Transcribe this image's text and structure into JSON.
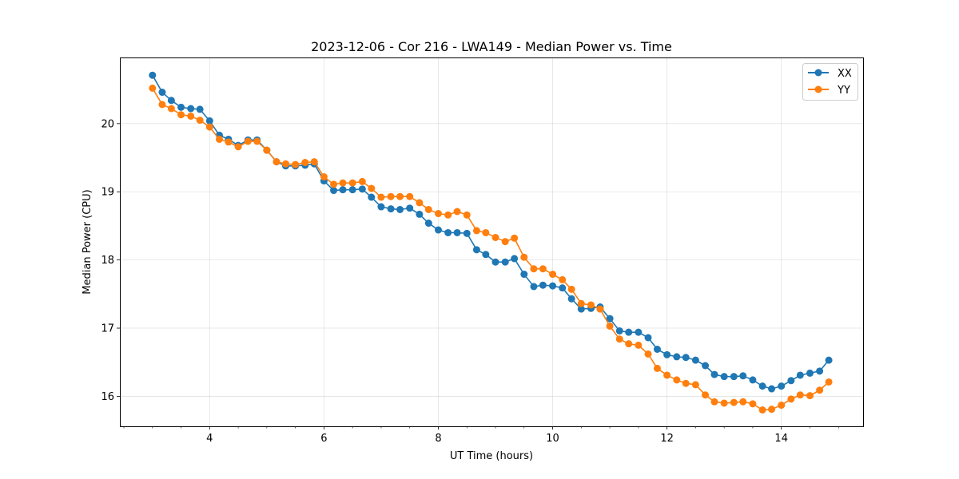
{
  "chart_data": {
    "type": "line",
    "title": "2023-12-06 - Cor 216 - LWA149 - Median Power vs. Time",
    "xlabel": "UT Time (hours)",
    "ylabel": "Median Power (CPU)",
    "xlim": [
      2.43,
      15.43
    ],
    "ylim": [
      15.56,
      20.97
    ],
    "xticks": [
      4,
      6,
      8,
      10,
      12,
      14
    ],
    "yticks": [
      16,
      17,
      18,
      19,
      20
    ],
    "grid": true,
    "legend": "top-right",
    "x": [
      3.0,
      3.17,
      3.33,
      3.5,
      3.67,
      3.83,
      4.0,
      4.17,
      4.33,
      4.5,
      4.67,
      4.83,
      5.0,
      5.17,
      5.33,
      5.5,
      5.67,
      5.83,
      6.0,
      6.17,
      6.33,
      6.5,
      6.67,
      6.83,
      7.0,
      7.17,
      7.33,
      7.5,
      7.67,
      7.83,
      8.0,
      8.17,
      8.33,
      8.5,
      8.67,
      8.83,
      9.0,
      9.17,
      9.33,
      9.5,
      9.67,
      9.83,
      10.0,
      10.17,
      10.33,
      10.5,
      10.67,
      10.83,
      11.0,
      11.17,
      11.33,
      11.5,
      11.67,
      11.83,
      12.0,
      12.17,
      12.33,
      12.5,
      12.67,
      12.83,
      13.0,
      13.17,
      13.33,
      13.5,
      13.67,
      13.83,
      14.0,
      14.17,
      14.33,
      14.5,
      14.67,
      14.83
    ],
    "series": [
      {
        "name": "XX",
        "color": "#1f77b4",
        "values": [
          20.71,
          20.46,
          20.34,
          20.24,
          20.22,
          20.21,
          20.04,
          19.83,
          19.77,
          19.68,
          19.76,
          19.76,
          19.61,
          19.44,
          19.38,
          19.38,
          19.39,
          19.41,
          19.16,
          19.02,
          19.03,
          19.03,
          19.04,
          18.92,
          18.78,
          18.75,
          18.74,
          18.76,
          18.67,
          18.54,
          18.44,
          18.4,
          18.4,
          18.39,
          18.15,
          18.08,
          17.97,
          17.97,
          18.02,
          17.79,
          17.61,
          17.63,
          17.62,
          17.59,
          17.43,
          17.28,
          17.29,
          17.31,
          17.14,
          16.96,
          16.94,
          16.94,
          16.86,
          16.69,
          16.61,
          16.58,
          16.57,
          16.53,
          16.45,
          16.32,
          16.29,
          16.29,
          16.3,
          16.24,
          16.15,
          16.11,
          16.15,
          16.23,
          16.31,
          16.34,
          16.37,
          16.53
        ]
      },
      {
        "name": "YY",
        "color": "#ff7f0e",
        "values": [
          20.52,
          20.28,
          20.22,
          20.13,
          20.11,
          20.05,
          19.95,
          19.77,
          19.73,
          19.66,
          19.74,
          19.74,
          19.61,
          19.44,
          19.41,
          19.4,
          19.43,
          19.44,
          19.22,
          19.11,
          19.13,
          19.13,
          19.15,
          19.05,
          18.92,
          18.93,
          18.93,
          18.93,
          18.84,
          18.74,
          18.68,
          18.66,
          18.71,
          18.66,
          18.43,
          18.4,
          18.33,
          18.27,
          18.32,
          18.04,
          17.87,
          17.87,
          17.79,
          17.71,
          17.57,
          17.36,
          17.34,
          17.28,
          17.03,
          16.84,
          16.77,
          16.75,
          16.62,
          16.41,
          16.31,
          16.24,
          16.19,
          16.17,
          16.02,
          15.92,
          15.9,
          15.91,
          15.92,
          15.89,
          15.8,
          15.81,
          15.87,
          15.96,
          16.02,
          16.01,
          16.09,
          16.21
        ]
      }
    ]
  }
}
